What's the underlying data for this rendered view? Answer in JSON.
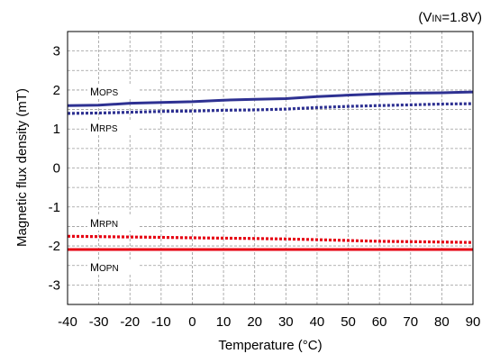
{
  "chart_data": {
    "type": "line",
    "condition": {
      "open": "(V",
      "subscript": "IN",
      "rest": "=1.8V)"
    },
    "xlabel": "Temperature (°C)",
    "ylabel": "Magnetic flux density (mT)",
    "xlim": [
      -40,
      90
    ],
    "ylim": [
      -3.5,
      3.5
    ],
    "x_ticks": [
      -40,
      -30,
      -20,
      -10,
      0,
      10,
      20,
      30,
      40,
      50,
      60,
      70,
      80,
      90
    ],
    "y_ticks": [
      3,
      2,
      1,
      0,
      -1,
      -2,
      -3
    ],
    "grid": true,
    "series": [
      {
        "name": "MOPS",
        "label_main": "M",
        "label_sub": "OPS",
        "color": "#2e3192",
        "style": "solid",
        "x": [
          -40,
          -30,
          -20,
          -10,
          0,
          10,
          20,
          30,
          40,
          50,
          60,
          70,
          80,
          90
        ],
        "values": [
          1.6,
          1.61,
          1.66,
          1.68,
          1.7,
          1.74,
          1.76,
          1.78,
          1.83,
          1.87,
          1.9,
          1.92,
          1.93,
          1.95
        ]
      },
      {
        "name": "MRPS",
        "label_main": "M",
        "label_sub": "RPS",
        "color": "#2e3192",
        "style": "dotted",
        "x": [
          -40,
          -30,
          -20,
          -10,
          0,
          10,
          20,
          30,
          40,
          50,
          60,
          70,
          80,
          90
        ],
        "values": [
          1.4,
          1.41,
          1.43,
          1.45,
          1.46,
          1.48,
          1.49,
          1.51,
          1.55,
          1.58,
          1.6,
          1.62,
          1.64,
          1.65
        ]
      },
      {
        "name": "MRPN",
        "label_main": "M",
        "label_sub": "RPN",
        "color": "#e60012",
        "style": "dotted",
        "x": [
          -40,
          -30,
          -20,
          -10,
          0,
          10,
          20,
          30,
          40,
          50,
          60,
          70,
          80,
          90
        ],
        "values": [
          -1.75,
          -1.76,
          -1.77,
          -1.78,
          -1.79,
          -1.8,
          -1.81,
          -1.82,
          -1.84,
          -1.86,
          -1.88,
          -1.89,
          -1.9,
          -1.91
        ]
      },
      {
        "name": "MOPN",
        "label_main": "M",
        "label_sub": "OPN",
        "color": "#e60012",
        "style": "solid",
        "x": [
          -40,
          -30,
          -20,
          -10,
          0,
          10,
          20,
          30,
          40,
          50,
          60,
          70,
          80,
          90
        ],
        "values": [
          -2.09,
          -2.09,
          -2.09,
          -2.09,
          -2.09,
          -2.09,
          -2.09,
          -2.09,
          -2.09,
          -2.09,
          -2.09,
          -2.09,
          -2.09,
          -2.09
        ]
      }
    ]
  }
}
